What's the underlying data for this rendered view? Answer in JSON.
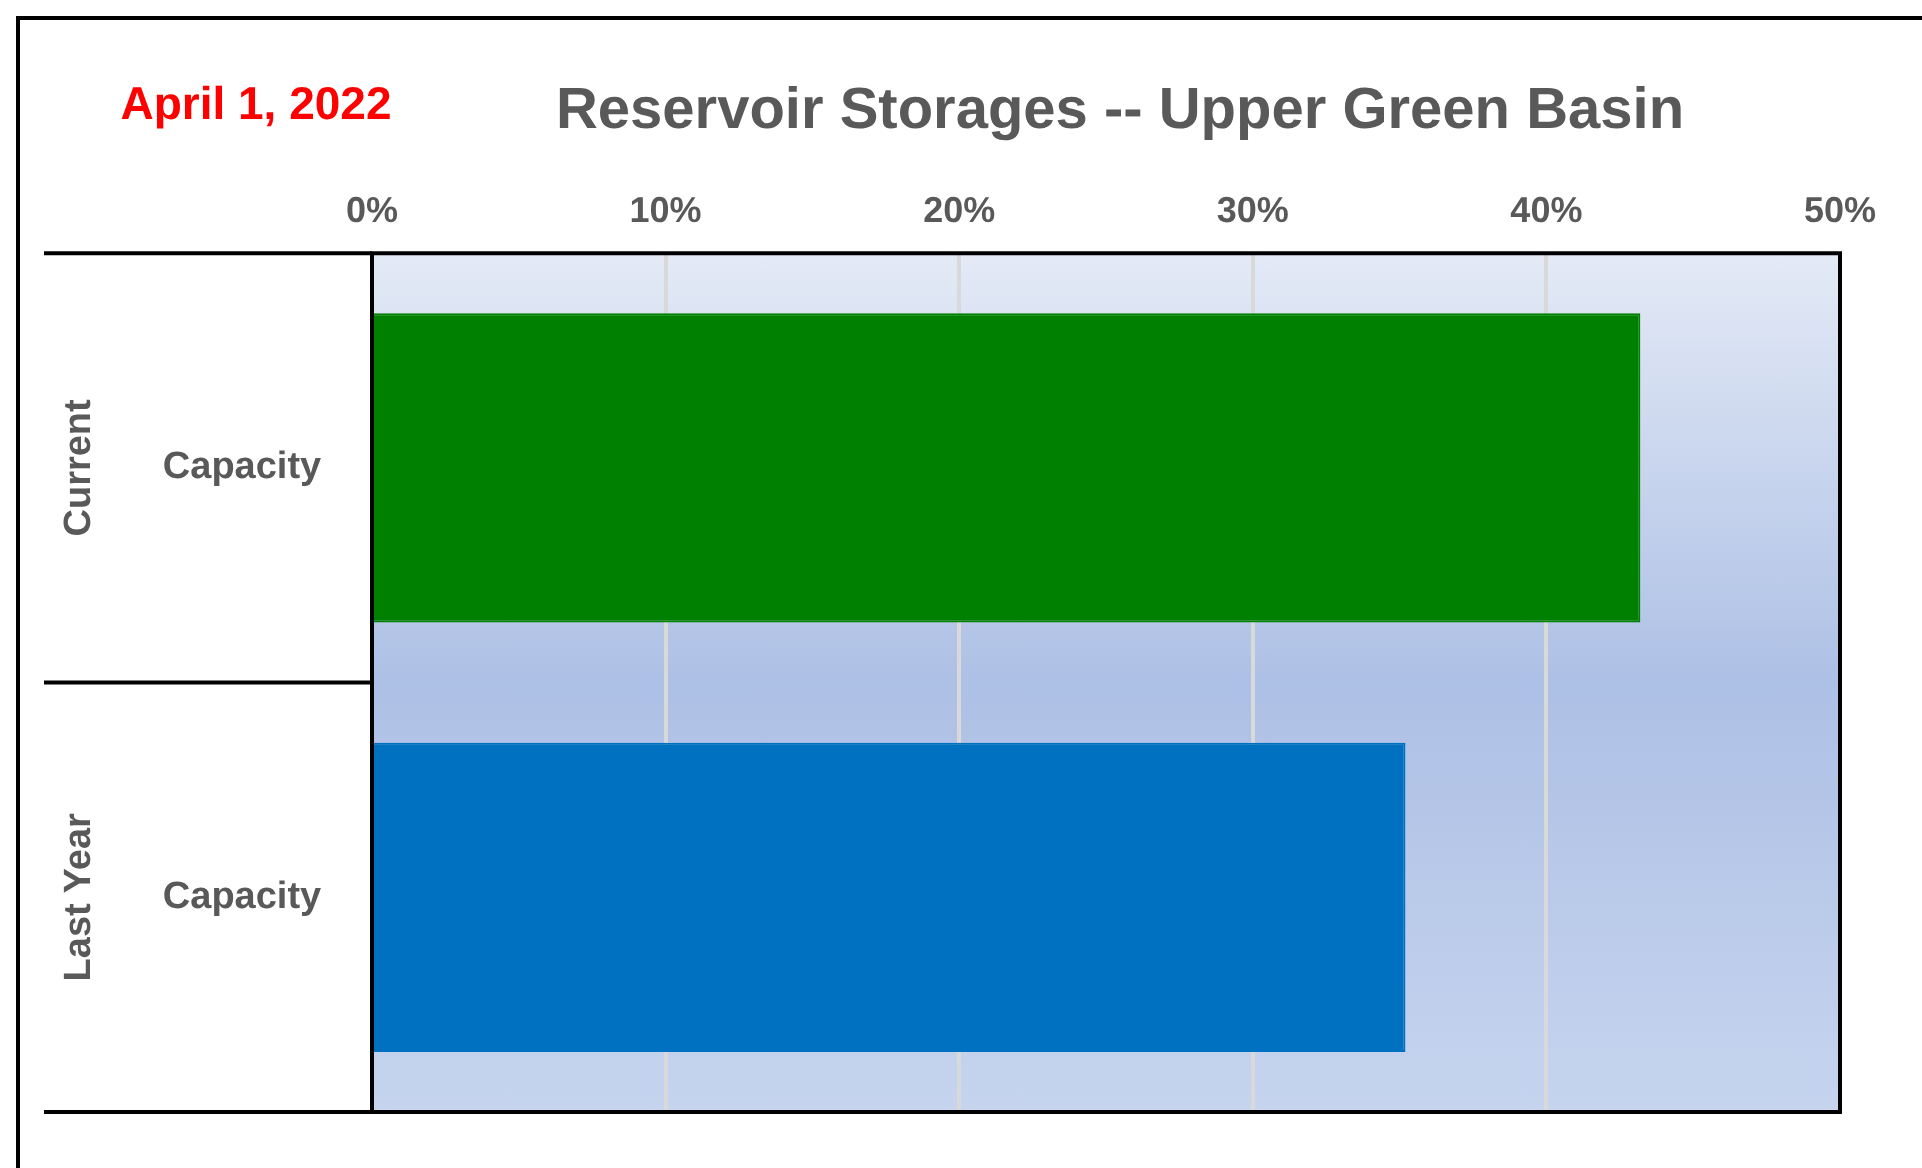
{
  "chart_data": {
    "type": "bar",
    "orientation": "horizontal",
    "title": "Reservoir Storages -- Upper Green Basin",
    "annotations": [
      "April 1, 2022",
      "Current",
      "Last Year"
    ],
    "categories": [
      "Capacity",
      "Capacity"
    ],
    "values": [
      43.2,
      35.2
    ],
    "colors": [
      "#008000",
      "#0070c0"
    ],
    "xlim": [
      0,
      50
    ],
    "xticks": [
      {
        "value": 0,
        "label": "0%"
      },
      {
        "value": 10,
        "label": "10%"
      },
      {
        "value": 20,
        "label": "20%"
      },
      {
        "value": 30,
        "label": "30%"
      },
      {
        "value": 40,
        "label": "40%"
      },
      {
        "value": 50,
        "label": "50%"
      }
    ],
    "grid": "x",
    "legend": false
  }
}
